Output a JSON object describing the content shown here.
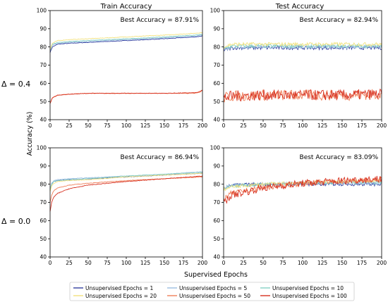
{
  "figure": {
    "ylabel": "Accuracy (%)",
    "xlabel": "Supervised Epochs",
    "row_labels": [
      "Δ = 0.4",
      "Δ = 0.0"
    ]
  },
  "legend": {
    "entries": [
      {
        "name": "Unsupervised Epochs = 1",
        "color": "#3340a0"
      },
      {
        "name": "Unsupervised Epochs = 5",
        "color": "#9bbfe0"
      },
      {
        "name": "Unsupervised Epochs = 10",
        "color": "#86d1c4"
      },
      {
        "name": "Unsupervised Epochs = 20",
        "color": "#f2e27e"
      },
      {
        "name": "Unsupervised Epochs = 50",
        "color": "#f07f58"
      },
      {
        "name": "Unsupervised Epochs = 100",
        "color": "#d7301f"
      }
    ]
  },
  "chart_data": [
    {
      "type": "line",
      "title": "Train Accuracy",
      "annotation": "Best Accuracy = 87.91%",
      "xlim": [
        0,
        200
      ],
      "ylim": [
        40,
        100
      ],
      "xticks": [
        0,
        25,
        50,
        75,
        100,
        125,
        150,
        175,
        200
      ],
      "yticks": [
        40,
        50,
        60,
        70,
        80,
        90,
        100
      ],
      "noise": 0.15,
      "series": [
        {
          "name": "Unsupervised Epochs = 1",
          "x": [
            0,
            3,
            10,
            25,
            50,
            100,
            150,
            190,
            200
          ],
          "y": [
            77,
            80,
            81.5,
            82,
            82.5,
            83.5,
            84.5,
            85.5,
            86
          ]
        },
        {
          "name": "Unsupervised Epochs = 5",
          "x": [
            0,
            3,
            10,
            25,
            50,
            100,
            150,
            190,
            200
          ],
          "y": [
            78,
            81,
            82,
            82.5,
            83,
            84,
            85,
            86,
            86.5
          ]
        },
        {
          "name": "Unsupervised Epochs = 10",
          "x": [
            0,
            3,
            10,
            25,
            50,
            100,
            150,
            190,
            200
          ],
          "y": [
            78,
            81.5,
            82.5,
            83,
            83.5,
            84.5,
            85.5,
            86.5,
            87
          ]
        },
        {
          "name": "Unsupervised Epochs = 20",
          "x": [
            0,
            3,
            10,
            25,
            50,
            100,
            150,
            190,
            200
          ],
          "y": [
            78.5,
            82,
            83.5,
            84,
            84.5,
            85.5,
            86.5,
            87.5,
            87.9
          ]
        },
        {
          "name": "Unsupervised Epochs = 50",
          "x": [
            0,
            3,
            10,
            25,
            50,
            100,
            150,
            190,
            196,
            200
          ],
          "y": [
            49,
            52,
            53.5,
            54,
            54.5,
            54.5,
            54.5,
            54.5,
            55,
            56
          ]
        },
        {
          "name": "Unsupervised Epochs = 100",
          "x": [
            0,
            3,
            10,
            25,
            50,
            100,
            150,
            190,
            196,
            200
          ],
          "y": [
            49,
            52,
            53.5,
            54,
            54.5,
            54.5,
            54.5,
            54.8,
            55.3,
            56.3
          ]
        }
      ]
    },
    {
      "type": "line",
      "title": "Test Accuracy",
      "annotation": "Best Accuracy = 82.94%",
      "xlim": [
        0,
        200
      ],
      "ylim": [
        40,
        100
      ],
      "xticks": [
        0,
        25,
        50,
        75,
        100,
        125,
        150,
        175,
        200
      ],
      "yticks": [
        40,
        50,
        60,
        70,
        80,
        90,
        100
      ],
      "noise": 1.0,
      "series": [
        {
          "name": "Unsupervised Epochs = 1",
          "x": [
            0,
            10,
            50,
            100,
            150,
            200
          ],
          "y": [
            78,
            79.5,
            79.5,
            79.5,
            79.5,
            79.5
          ]
        },
        {
          "name": "Unsupervised Epochs = 5",
          "x": [
            0,
            10,
            50,
            100,
            150,
            200
          ],
          "y": [
            78.5,
            80,
            80,
            80,
            80,
            80
          ]
        },
        {
          "name": "Unsupervised Epochs = 10",
          "x": [
            0,
            10,
            50,
            100,
            150,
            200
          ],
          "y": [
            79,
            80.5,
            80.5,
            80.5,
            80.5,
            80.5
          ]
        },
        {
          "name": "Unsupervised Epochs = 20",
          "x": [
            0,
            10,
            50,
            100,
            150,
            200
          ],
          "y": [
            80,
            81.5,
            81.5,
            81.5,
            81.5,
            81.5
          ]
        },
        {
          "name": "Unsupervised Epochs = 50",
          "x": [
            0,
            10,
            50,
            100,
            150,
            200
          ],
          "y": [
            52,
            53,
            53.5,
            53.5,
            53.5,
            54
          ],
          "noise": 3.0
        },
        {
          "name": "Unsupervised Epochs = 100",
          "x": [
            0,
            10,
            50,
            100,
            150,
            200
          ],
          "y": [
            52,
            53,
            53.5,
            53.5,
            53.5,
            54
          ],
          "noise": 3.0
        }
      ]
    },
    {
      "type": "line",
      "title": "",
      "annotation": "Best Accuracy = 86.94%",
      "xlim": [
        0,
        200
      ],
      "ylim": [
        40,
        100
      ],
      "xticks": [
        0,
        25,
        50,
        75,
        100,
        125,
        150,
        175,
        200
      ],
      "yticks": [
        40,
        50,
        60,
        70,
        80,
        90,
        100
      ],
      "noise": 0.15,
      "series": [
        {
          "name": "Unsupervised Epochs = 1",
          "x": [
            0,
            2,
            5,
            10,
            25,
            50,
            100,
            150,
            200
          ],
          "y": [
            77,
            80,
            81.5,
            82,
            82.5,
            83,
            84,
            85,
            86
          ]
        },
        {
          "name": "Unsupervised Epochs = 5",
          "x": [
            0,
            2,
            5,
            10,
            25,
            50,
            100,
            150,
            200
          ],
          "y": [
            77,
            80.5,
            82,
            82.5,
            83,
            83.5,
            84.5,
            85.5,
            86.9
          ]
        },
        {
          "name": "Unsupervised Epochs = 10",
          "x": [
            0,
            2,
            5,
            10,
            25,
            50,
            100,
            150,
            200
          ],
          "y": [
            76.5,
            80,
            81.5,
            82,
            82.5,
            83,
            84.5,
            85.5,
            86.5
          ]
        },
        {
          "name": "Unsupervised Epochs = 20",
          "x": [
            0,
            2,
            5,
            10,
            25,
            50,
            100,
            150,
            200
          ],
          "y": [
            76,
            79,
            80.5,
            81.5,
            82,
            82.5,
            84,
            85,
            86
          ]
        },
        {
          "name": "Unsupervised Epochs = 50",
          "x": [
            0,
            2,
            5,
            10,
            25,
            50,
            100,
            150,
            200
          ],
          "y": [
            70,
            74,
            76.5,
            78,
            79.5,
            80.5,
            82,
            83,
            84
          ]
        },
        {
          "name": "Unsupervised Epochs = 100",
          "x": [
            0,
            2,
            5,
            10,
            25,
            50,
            100,
            150,
            200
          ],
          "y": [
            65,
            70,
            73,
            75,
            77.5,
            79.5,
            81.5,
            83,
            84.5
          ]
        }
      ]
    },
    {
      "type": "line",
      "title": "",
      "annotation": "Best Accuracy = 83.09%",
      "xlim": [
        0,
        200
      ],
      "ylim": [
        40,
        100
      ],
      "xticks": [
        0,
        25,
        50,
        75,
        100,
        125,
        150,
        175,
        200
      ],
      "yticks": [
        40,
        50,
        60,
        70,
        80,
        90,
        100
      ],
      "noise": 0.9,
      "series": [
        {
          "name": "Unsupervised Epochs = 1",
          "x": [
            0,
            10,
            50,
            100,
            150,
            200
          ],
          "y": [
            78,
            79.5,
            80,
            80,
            80,
            80
          ]
        },
        {
          "name": "Unsupervised Epochs = 5",
          "x": [
            0,
            10,
            50,
            100,
            150,
            200
          ],
          "y": [
            78,
            79.5,
            80,
            80.5,
            80.5,
            80.5
          ]
        },
        {
          "name": "Unsupervised Epochs = 10",
          "x": [
            0,
            10,
            50,
            100,
            150,
            200
          ],
          "y": [
            77.5,
            79,
            80,
            80.5,
            81,
            81
          ]
        },
        {
          "name": "Unsupervised Epochs = 20",
          "x": [
            0,
            10,
            50,
            100,
            150,
            200
          ],
          "y": [
            77,
            78.5,
            80,
            81,
            81.5,
            82
          ]
        },
        {
          "name": "Unsupervised Epochs = 50",
          "x": [
            0,
            10,
            50,
            100,
            150,
            200
          ],
          "y": [
            72,
            75,
            78,
            80.5,
            81.5,
            82.5
          ],
          "noise": 1.5
        },
        {
          "name": "Unsupervised Epochs = 100",
          "x": [
            0,
            10,
            50,
            100,
            150,
            200
          ],
          "y": [
            70,
            74,
            78,
            80.5,
            82,
            83
          ],
          "noise": 2.0
        }
      ]
    }
  ]
}
